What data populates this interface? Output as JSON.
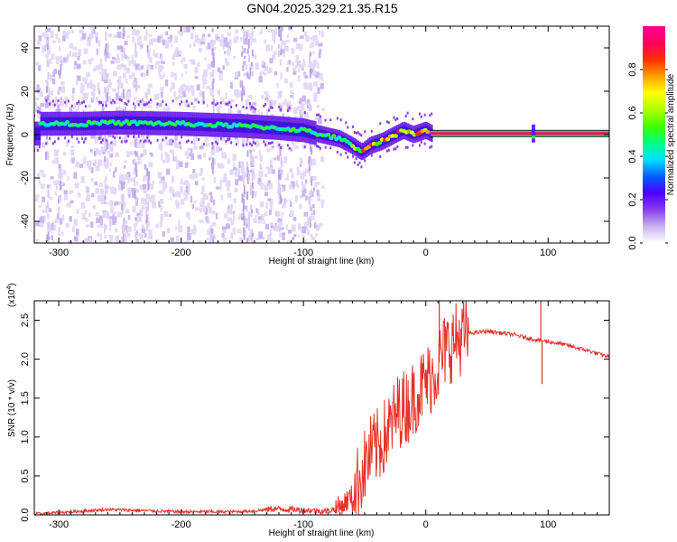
{
  "title": "GN04.2025.329.21.35.R15",
  "chart_data": [
    {
      "type": "heatmap",
      "xlabel": "Height of straight line (km)",
      "ylabel": "Frequency (Hz)",
      "xlim": [
        -320,
        150
      ],
      "ylim": [
        -50,
        50
      ],
      "xticks": [
        -300,
        -200,
        -100,
        0,
        100
      ],
      "yticks": [
        -40,
        -20,
        0,
        20,
        40
      ],
      "colorbar": {
        "label": "Normalized spectral amplitude",
        "range": [
          0,
          1
        ],
        "ticks": [
          "0.0",
          "0.2",
          "0.4",
          "0.6",
          "0.8"
        ],
        "tick_values": [
          0,
          0.2,
          0.4,
          0.6,
          0.8
        ],
        "colors": [
          "#ffffff",
          "#c9b3ef",
          "#8a3cf0",
          "#4b00ff",
          "#0060ff",
          "#00e0ff",
          "#00ff80",
          "#40ff00",
          "#b0ff00",
          "#ffff00",
          "#ffa000",
          "#ff3000",
          "#ff0060",
          "#ff0090"
        ]
      },
      "ridge": [
        {
          "x": -315,
          "y": 5
        },
        {
          "x": -280,
          "y": 5
        },
        {
          "x": -250,
          "y": 5.5
        },
        {
          "x": -200,
          "y": 5
        },
        {
          "x": -150,
          "y": 4
        },
        {
          "x": -120,
          "y": 3
        },
        {
          "x": -100,
          "y": 2
        },
        {
          "x": -85,
          "y": 0
        },
        {
          "x": -70,
          "y": -2
        },
        {
          "x": -60,
          "y": -5
        },
        {
          "x": -52,
          "y": -8
        },
        {
          "x": -45,
          "y": -5
        },
        {
          "x": -35,
          "y": -3
        },
        {
          "x": -25,
          "y": 0
        },
        {
          "x": -18,
          "y": 2
        },
        {
          "x": -10,
          "y": 0
        },
        {
          "x": -5,
          "y": 1
        },
        {
          "x": 0,
          "y": 2
        },
        {
          "x": 5,
          "y": 0.5
        },
        {
          "x": 150,
          "y": 0.5
        }
      ]
    },
    {
      "type": "line",
      "xlabel": "Height of straight line (km)",
      "ylabel": "SNR (10 * v/v)",
      "scale_label": "(x10",
      "scale_exp": "4",
      "scale_close": ")",
      "xlim": [
        -320,
        150
      ],
      "ylim": [
        0,
        2.75
      ],
      "xticks": [
        -300,
        -200,
        -100,
        0,
        100
      ],
      "yticks": [
        "0.0",
        "0.5",
        "1.0",
        "1.5",
        "2.0",
        "2.5"
      ],
      "ytick_values": [
        0,
        0.5,
        1.0,
        1.5,
        2.0,
        2.5
      ],
      "color": "#e8302a",
      "series": [
        {
          "x": -320,
          "y": 0.01
        },
        {
          "x": -300,
          "y": 0.03
        },
        {
          "x": -280,
          "y": 0.05
        },
        {
          "x": -260,
          "y": 0.07
        },
        {
          "x": -240,
          "y": 0.06
        },
        {
          "x": -220,
          "y": 0.05
        },
        {
          "x": -200,
          "y": 0.04
        },
        {
          "x": -180,
          "y": 0.04
        },
        {
          "x": -160,
          "y": 0.04
        },
        {
          "x": -140,
          "y": 0.05
        },
        {
          "x": -125,
          "y": 0.08
        },
        {
          "x": -110,
          "y": 0.07
        },
        {
          "x": -95,
          "y": 0.06
        },
        {
          "x": -80,
          "y": 0.05
        },
        {
          "x": -70,
          "y": 0.1
        },
        {
          "x": -60,
          "y": 0.25
        },
        {
          "x": -52,
          "y": 0.55
        },
        {
          "x": -45,
          "y": 0.8
        },
        {
          "x": -38,
          "y": 0.9
        },
        {
          "x": -30,
          "y": 1.1
        },
        {
          "x": -22,
          "y": 1.35
        },
        {
          "x": -15,
          "y": 1.4
        },
        {
          "x": -8,
          "y": 1.55
        },
        {
          "x": 0,
          "y": 1.7
        },
        {
          "x": 8,
          "y": 1.85
        },
        {
          "x": 15,
          "y": 2.1
        },
        {
          "x": 25,
          "y": 2.25
        },
        {
          "x": 35,
          "y": 2.33
        },
        {
          "x": 50,
          "y": 2.36
        },
        {
          "x": 70,
          "y": 2.32
        },
        {
          "x": 90,
          "y": 2.25
        },
        {
          "x": 110,
          "y": 2.2
        },
        {
          "x": 130,
          "y": 2.12
        },
        {
          "x": 150,
          "y": 2.03
        }
      ],
      "spikes": [
        {
          "x": 11,
          "y": 2.75
        },
        {
          "x": 94,
          "y": 2.75
        },
        {
          "x": 95,
          "y": 1.68
        }
      ]
    }
  ]
}
